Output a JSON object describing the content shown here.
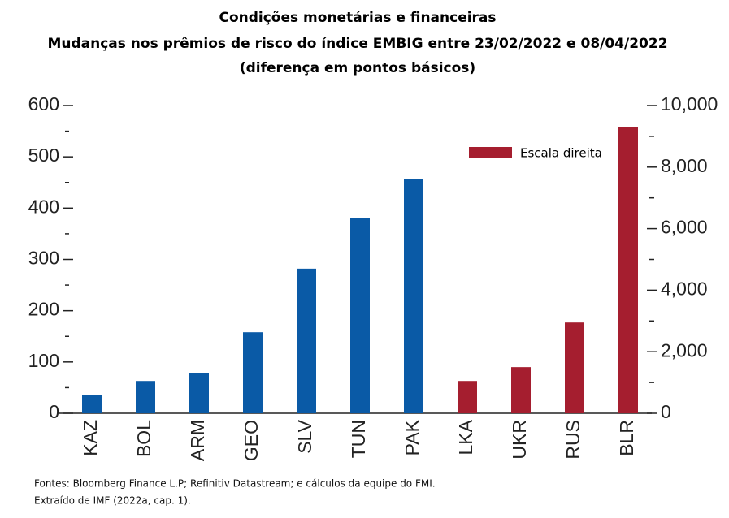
{
  "chart_data": {
    "type": "bar",
    "title": "Condições monetárias e financeiras",
    "subtitle": [
      "Mudanças nos prêmios de risco do índice EMBIG entre 23/02/2022  e 08/04/2022",
      "(diferença em pontos básicos)"
    ],
    "categories": [
      "KAZ",
      "BOL",
      "ARM",
      "GEO",
      "SLV",
      "TUN",
      "PAK",
      "LKA",
      "UKR",
      "RUS",
      "BLR"
    ],
    "series": [
      {
        "color": "#0a5aa6",
        "values": [
          35,
          63,
          79,
          158,
          282,
          381,
          457,
          null,
          null,
          null,
          null
        ]
      },
      {
        "name": "Escala direita",
        "color": "#a51e2f",
        "axis": "y2",
        "values": [
          null,
          null,
          null,
          null,
          null,
          null,
          null,
          1050,
          1500,
          2950,
          9300
        ]
      }
    ],
    "ylim": [
      0,
      600
    ],
    "yticks": [
      0,
      100,
      200,
      300,
      400,
      500,
      600
    ],
    "yminorticks": [
      50,
      150,
      250,
      350,
      450,
      550
    ],
    "y2lim": [
      0,
      10000
    ],
    "y2ticks": [
      0,
      {
        "value": 2000,
        "label": "2,000"
      },
      {
        "value": 4000,
        "label": "4,000"
      },
      {
        "value": 6000,
        "label": "6,000"
      },
      {
        "value": 8000,
        "label": "8,000"
      },
      {
        "value": 10000,
        "label": "10,000"
      }
    ],
    "y2minorticks": [
      1000,
      3000,
      5000,
      7000,
      9000
    ],
    "source": [
      "Fontes: Bloomberg  Finance L.P; Refinitiv Datastream; e cálculos da equipe do  FMI.",
      "Extraído de IMF (2022a, cap. 1)."
    ]
  }
}
